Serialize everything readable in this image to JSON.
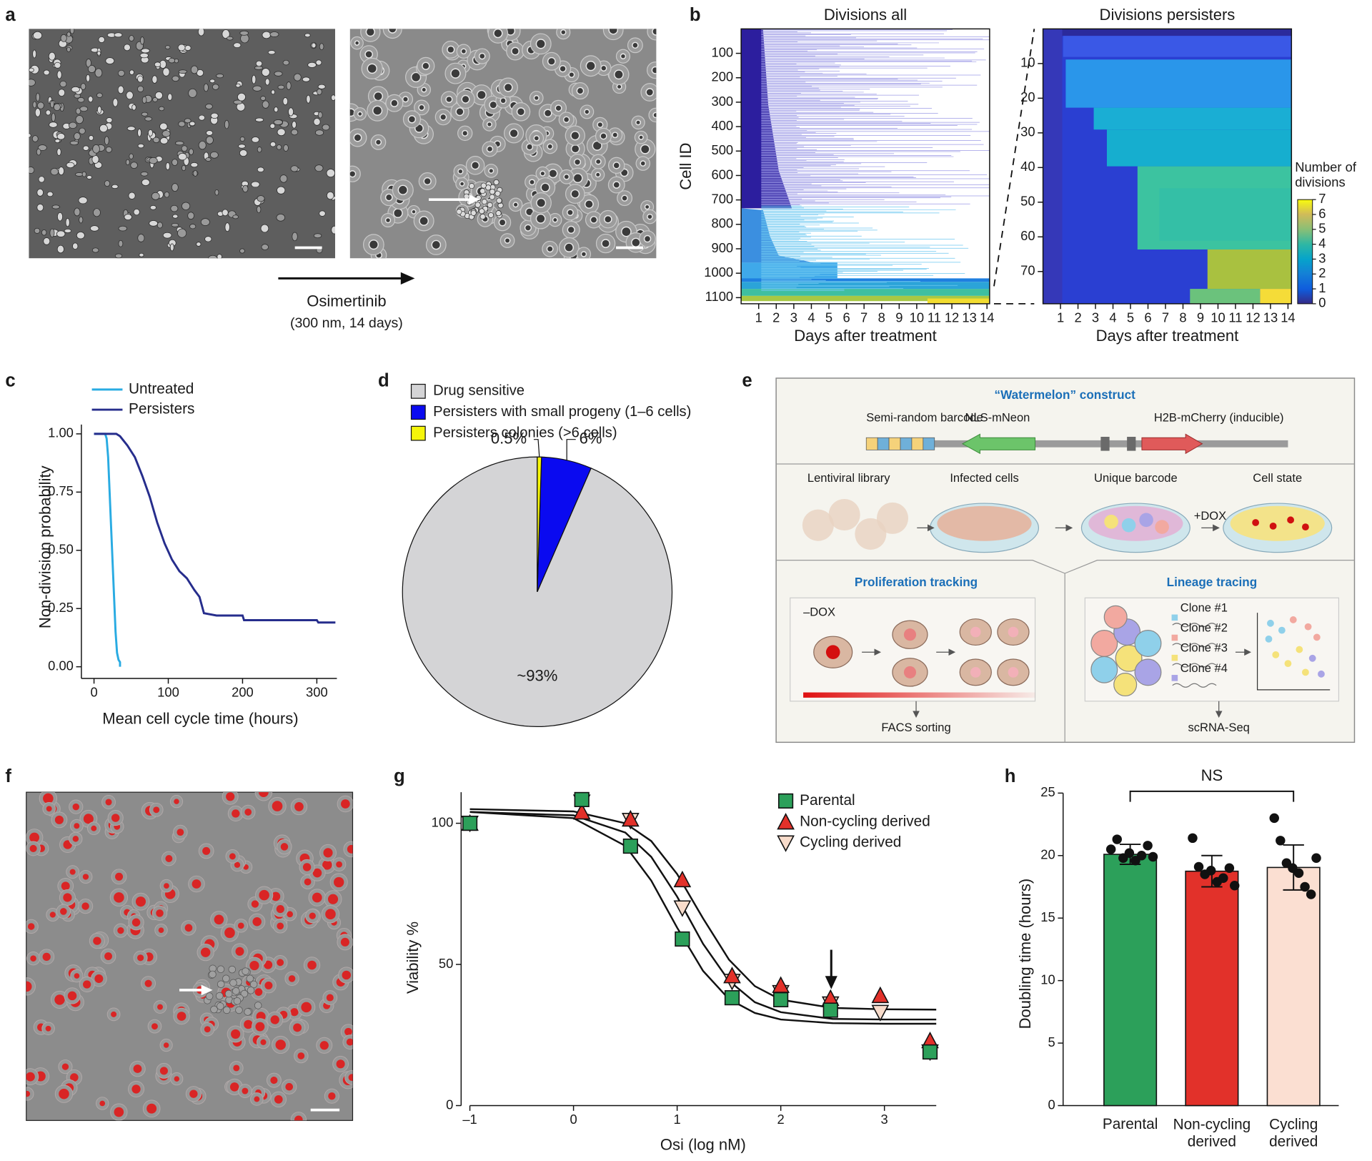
{
  "panel_labels": [
    "a",
    "b",
    "c",
    "d",
    "e",
    "f",
    "g",
    "h"
  ],
  "panel_a": {
    "treatment": "Osimertinib",
    "conditions": "(300 nm, 14 days)"
  },
  "panel_e": {
    "construct_title": "“Watermelon” construct",
    "barcode": "Semi-random barcode",
    "neon": "NLS-mNeon",
    "cherry": "H2B-mCherry (inducible)",
    "steps": [
      "Lentiviral library",
      "Infected cells",
      "Unique barcode",
      "Cell state"
    ],
    "dox_plus": "+DOX",
    "proliferation_title": "Proliferation tracking",
    "dox_minus": "–DOX",
    "facs": "FACS sorting",
    "lineage_title": "Lineage tracing",
    "clones": [
      "Clone #1",
      "Clone #2",
      "Clone #3",
      "Clone #4"
    ],
    "scrna": "scRNA-Seq"
  },
  "chart_data": [
    {
      "type": "heatmap",
      "title": "Divisions all",
      "xlabel": "Days after treatment",
      "ylabel": "Cell ID",
      "xlim": [
        0,
        14.15
      ],
      "xticks": [
        1,
        2,
        3,
        4,
        5,
        6,
        7,
        8,
        9,
        10,
        11,
        12,
        13,
        14
      ],
      "ylim": [
        1125,
        0
      ],
      "yticks": [
        100,
        200,
        300,
        400,
        500,
        600,
        700,
        800,
        900,
        1000,
        1100
      ]
    },
    {
      "type": "heatmap",
      "title": "Divisions persisters",
      "xlabel": "Days after treatment",
      "xlim": [
        0,
        14.2
      ],
      "xticks": [
        1,
        2,
        3,
        4,
        5,
        6,
        7,
        8,
        9,
        10,
        11,
        12,
        13,
        14
      ],
      "ylim": [
        79.3,
        0
      ],
      "yticks": [
        10,
        20,
        30,
        40,
        50,
        60,
        70
      ],
      "colorbar": {
        "label": "Number of\ndivisions",
        "lim": [
          0,
          7
        ],
        "ticks": [
          0,
          1,
          2,
          3,
          4,
          5,
          6,
          7
        ]
      }
    },
    {
      "type": "line",
      "xlabel": "Mean cell cycle time (hours)",
      "ylabel": "Non-division probability",
      "xlim": [
        -17,
        327
      ],
      "xticks": [
        0,
        100,
        200,
        300
      ],
      "ylim": [
        -0.05,
        1.04
      ],
      "yticks": [
        {
          "value": 0,
          "label": "0.00"
        },
        {
          "value": 0.25,
          "label": "0.25"
        },
        {
          "value": 0.5,
          "label": "0.50"
        },
        {
          "value": 0.75,
          "label": "0.75"
        },
        {
          "value": 1,
          "label": "1.00"
        }
      ],
      "series": [
        {
          "name": "Untreated",
          "color": "#29abe2",
          "x": [
            0,
            15,
            17,
            19,
            21,
            23,
            25,
            27,
            29,
            31,
            33,
            35,
            35
          ],
          "values": [
            1,
            1,
            0.98,
            0.9,
            0.75,
            0.6,
            0.45,
            0.3,
            0.15,
            0.06,
            0.03,
            0.02,
            0
          ]
        },
        {
          "name": "Persisters",
          "color": "#262d8c",
          "x": [
            0,
            30,
            35,
            45,
            55,
            65,
            75,
            85,
            95,
            105,
            115,
            125,
            135,
            142,
            148,
            165,
            200,
            202,
            300,
            302,
            325
          ],
          "values": [
            1,
            1,
            0.99,
            0.95,
            0.9,
            0.82,
            0.73,
            0.62,
            0.53,
            0.46,
            0.41,
            0.38,
            0.33,
            0.3,
            0.23,
            0.22,
            0.22,
            0.2,
            0.2,
            0.19,
            0.19
          ]
        }
      ]
    },
    {
      "type": "pie",
      "categories": [
        "Drug sensitive",
        "Persisters with small progeny (1–6 cells)",
        "Persisters colonies (>6 cells)"
      ],
      "values": [
        93,
        6,
        0.5
      ],
      "value_labels": [
        "~93%",
        "6%",
        "0.5%"
      ],
      "colors": [
        "#d4d4d6",
        "#0a0af0",
        "#f5f50a"
      ]
    },
    {
      "type": "scatter",
      "xlabel": "Osi (log nM)",
      "ylabel": "Viability %",
      "xlim": [
        -1,
        3.5
      ],
      "xticks": [
        {
          "value": -1,
          "label": "–1"
        },
        0,
        1,
        2,
        3
      ],
      "ylim": [
        0,
        111
      ],
      "yticks": [
        0,
        50,
        100
      ],
      "x": [
        -1,
        0.08,
        0.55,
        1.05,
        1.53,
        2,
        2.48,
        2.96,
        3.44
      ],
      "series": [
        {
          "name": "Cycling derived",
          "color": "#f8dccb",
          "marker": "triangle-down",
          "values": [
            100,
            107.5,
            101,
            70,
            44,
            40,
            36,
            33,
            19
          ]
        },
        {
          "name": "Non-cycling derived",
          "color": "#e2312a",
          "marker": "triangle-up",
          "values": [
            100,
            104,
            101.5,
            80,
            46,
            42.6,
            38,
            39,
            23
          ]
        },
        {
          "name": "Parental",
          "color": "#2ca05a",
          "marker": "square",
          "values": [
            100,
            108.4,
            91.9,
            59,
            38.2,
            37.5,
            33.8,
            null,
            19
          ]
        }
      ],
      "fit_x": [
        -1,
        0,
        0.5,
        0.75,
        1,
        1.25,
        1.5,
        1.75,
        2,
        2.5,
        3,
        3.5
      ],
      "fits": [
        [
          104,
          102.8,
          96.7,
          88.1,
          74,
          57.3,
          44.2,
          36.6,
          33.1,
          30.7,
          30.5,
          30.5
        ],
        [
          105,
          104.2,
          100,
          93.7,
          82,
          66.3,
          51.7,
          42.3,
          37.5,
          34.6,
          34.1,
          34
        ],
        [
          104,
          101.8,
          92,
          79.7,
          63,
          47.7,
          37.7,
          32.8,
          30.5,
          29.2,
          29,
          29
        ]
      ],
      "fit_color": "#111111"
    },
    {
      "type": "bar",
      "ylabel": "Doubling time (hours)",
      "categories": [
        "Parental",
        "Non-cycling\nderived",
        "Cycling\nderived"
      ],
      "values": [
        20.1,
        18.75,
        19.05
      ],
      "errors": [
        0.8,
        1.25,
        1.8
      ],
      "points": [
        [
          20.5,
          21.3,
          19.8,
          20.2,
          19.6,
          20.0,
          20.8,
          19.9
        ],
        [
          21.4,
          19.1,
          18.5,
          18.8,
          17.9,
          18.2,
          19.0,
          17.6
        ],
        [
          23.0,
          21.2,
          19.4,
          19.0,
          18.6,
          17.5,
          16.9,
          19.8
        ]
      ],
      "colors": [
        "#2ca05a",
        "#e2312a",
        "#fbdfd2"
      ],
      "ylim": [
        0,
        25
      ],
      "yticks": [
        0,
        5,
        10,
        15,
        20,
        25
      ],
      "annotation": "NS"
    }
  ]
}
